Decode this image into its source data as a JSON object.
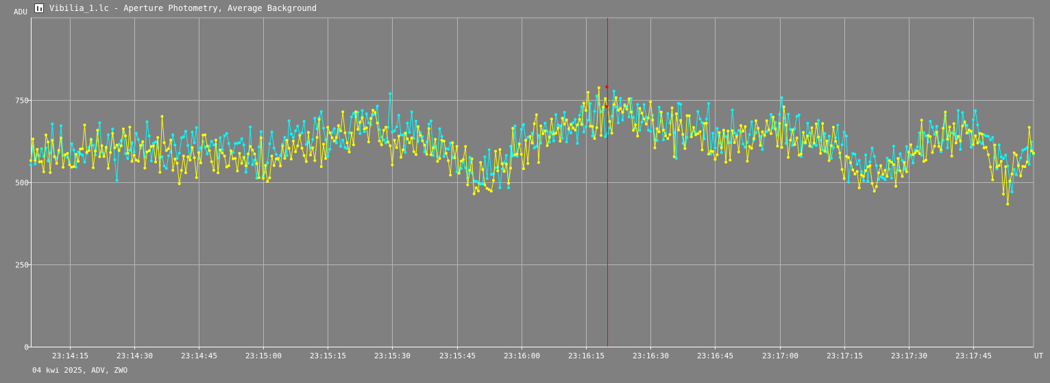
{
  "window": {
    "title": "Vibilia_1.lc - Aperture Photometry, Average Background",
    "icon": "chart-icon"
  },
  "footer": {
    "info": "04 kwi 2025, ADV, ZWO"
  },
  "colors": {
    "background": "#808080",
    "grid": "#b8b8b8",
    "axis": "#ffffff",
    "series_1": "#00ffff",
    "series_2": "#ffff00",
    "cursor": "#ff0000"
  },
  "chart_data": {
    "type": "scatter",
    "xlabel": "UT",
    "ylabel": "ADU",
    "title": "",
    "xlim": [
      "23:14:06",
      "23:17:59"
    ],
    "ylim": [
      0,
      1000
    ],
    "y_ticks": [
      0,
      250,
      500,
      750
    ],
    "x_ticks": [
      "23:14:15",
      "23:14:30",
      "23:14:45",
      "23:15:00",
      "23:15:15",
      "23:15:30",
      "23:15:45",
      "23:16:00",
      "23:16:15",
      "23:16:30",
      "23:16:45",
      "23:17:00",
      "23:17:15",
      "23:17:30",
      "23:17:45"
    ],
    "grid": true,
    "cursor_x": "23:16:20",
    "series": [
      {
        "color": "#00ffff",
        "seed": 11,
        "values": [
          [
            "23:14:06",
            600
          ],
          [
            "23:14:30",
            610
          ],
          [
            "23:14:45",
            605
          ],
          [
            "23:15:00",
            580
          ],
          [
            "23:15:10",
            640
          ],
          [
            "23:15:25",
            680
          ],
          [
            "23:15:35",
            640
          ],
          [
            "23:15:45",
            560
          ],
          [
            "23:15:50",
            500
          ],
          [
            "23:15:55",
            530
          ],
          [
            "23:16:00",
            620
          ],
          [
            "23:16:10",
            660
          ],
          [
            "23:16:20",
            720
          ],
          [
            "23:16:30",
            690
          ],
          [
            "23:16:45",
            640
          ],
          [
            "23:17:00",
            670
          ],
          [
            "23:17:10",
            650
          ],
          [
            "23:17:20",
            540
          ],
          [
            "23:17:25",
            530
          ],
          [
            "23:17:35",
            650
          ],
          [
            "23:17:45",
            660
          ],
          [
            "23:17:50",
            600
          ],
          [
            "23:17:53",
            520
          ],
          [
            "23:17:59",
            620
          ]
        ]
      },
      {
        "color": "#ffff00",
        "seed": 23,
        "values": [
          [
            "23:14:06",
            590
          ],
          [
            "23:14:30",
            600
          ],
          [
            "23:14:45",
            590
          ],
          [
            "23:15:00",
            560
          ],
          [
            "23:15:10",
            610
          ],
          [
            "23:15:20",
            670
          ],
          [
            "23:15:35",
            620
          ],
          [
            "23:15:45",
            560
          ],
          [
            "23:15:52",
            500
          ],
          [
            "23:15:57",
            560
          ],
          [
            "23:16:05",
            650
          ],
          [
            "23:16:12",
            690
          ],
          [
            "23:16:22",
            710
          ],
          [
            "23:16:30",
            670
          ],
          [
            "23:16:45",
            620
          ],
          [
            "23:17:00",
            650
          ],
          [
            "23:17:10",
            620
          ],
          [
            "23:17:20",
            520
          ],
          [
            "23:17:25",
            520
          ],
          [
            "23:17:35",
            630
          ],
          [
            "23:17:45",
            640
          ],
          [
            "23:17:50",
            580
          ],
          [
            "23:17:53",
            520
          ],
          [
            "23:17:59",
            620
          ]
        ]
      }
    ]
  }
}
